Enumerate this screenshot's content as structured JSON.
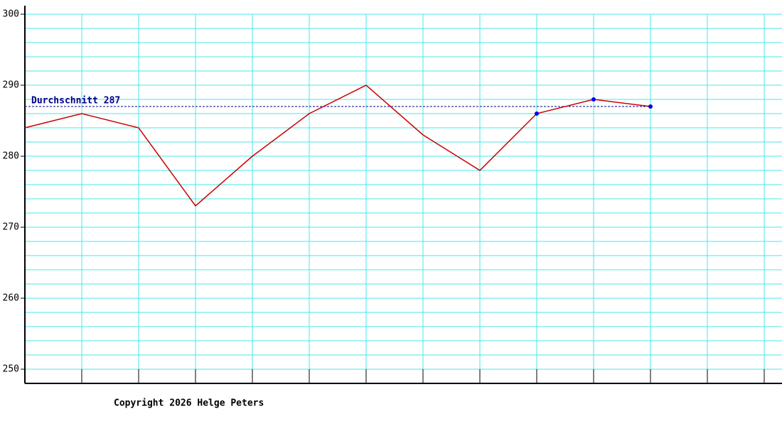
{
  "chart_data": {
    "type": "line",
    "x": [
      0,
      1,
      2,
      3,
      4,
      5,
      6,
      7,
      8,
      9,
      10,
      11
    ],
    "xlim": [
      0,
      13.3125
    ],
    "xticks": [
      1,
      2,
      3,
      4,
      5,
      6,
      7,
      8,
      9,
      10,
      11,
      12,
      13
    ],
    "series": [
      {
        "color": "#cc0000",
        "values": [
          284,
          286,
          284,
          273,
          280,
          286,
          290,
          283,
          278,
          286,
          288,
          287
        ]
      }
    ],
    "marker_color": "#0000ee",
    "marked_points": [
      9,
      10,
      11
    ],
    "ylim": [
      248,
      301.2
    ],
    "yticks": [
      250,
      260,
      270,
      280,
      290,
      300
    ],
    "minor_yticks": [
      252,
      254,
      256,
      258,
      262,
      264,
      266,
      268,
      272,
      274,
      276,
      278,
      282,
      284,
      286,
      288,
      292,
      294,
      296,
      298
    ],
    "grid": true,
    "grid_color": "#44e8e8",
    "average": {
      "value": 287,
      "label": "Durchschnitt 287",
      "color": "#00008b"
    },
    "footer": "Copyright 2026 Helge Peters"
  }
}
